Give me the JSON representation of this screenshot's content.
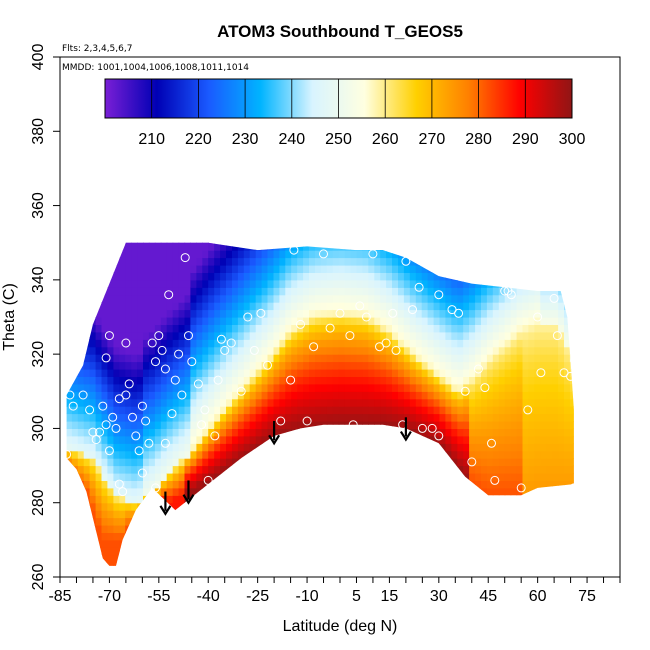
{
  "chart_data": {
    "type": "heatmap",
    "title": "ATOM3 Southbound T_GEOS5",
    "flights_label": "Flts: 2,3,4,5,6,7",
    "mmdd_label": "MMDD: 1001,1004,1006,1008,1011,1014",
    "xlabel": "Latitude (deg N)",
    "ylabel": "Theta (C)",
    "xlim": [
      -85,
      85
    ],
    "ylim": [
      260,
      400
    ],
    "x_ticks": [
      -85,
      -70,
      -55,
      -40,
      -25,
      -10,
      5,
      15,
      30,
      45,
      60,
      75
    ],
    "x_minor_step": 5,
    "y_ticks": [
      260,
      280,
      300,
      320,
      340,
      360,
      380,
      400
    ],
    "colorbar": {
      "range": [
        200,
        300
      ],
      "ticks": [
        210,
        220,
        230,
        240,
        250,
        260,
        270,
        280,
        290,
        300
      ],
      "colors": [
        "#7a1fd6",
        "#0000b4",
        "#1a5aff",
        "#00b4ff",
        "#d8f4ff",
        "#ffffe0",
        "#ffd000",
        "#ff8000",
        "#ff0000",
        "#901515"
      ]
    },
    "boundary_top": [
      [
        -83,
        309
      ],
      [
        -78,
        317
      ],
      [
        -75,
        328
      ],
      [
        -70,
        339
      ],
      [
        -65,
        350
      ],
      [
        -40,
        350
      ],
      [
        -25,
        348
      ],
      [
        -10,
        349
      ],
      [
        5,
        348
      ],
      [
        13,
        348
      ],
      [
        20,
        346
      ],
      [
        30,
        341
      ],
      [
        40,
        339
      ],
      [
        50,
        338
      ],
      [
        60,
        337
      ],
      [
        67,
        337
      ],
      [
        69,
        330
      ],
      [
        70,
        318
      ],
      [
        71,
        305
      ]
    ],
    "boundary_bottom": [
      [
        71,
        285
      ],
      [
        60,
        284
      ],
      [
        55,
        282
      ],
      [
        45,
        282
      ],
      [
        38,
        287
      ],
      [
        30,
        296
      ],
      [
        20,
        300
      ],
      [
        13,
        301
      ],
      [
        5,
        301
      ],
      [
        -5,
        301
      ],
      [
        -12,
        300
      ],
      [
        -20,
        298
      ],
      [
        -30,
        292
      ],
      [
        -40,
        285
      ],
      [
        -50,
        278
      ],
      [
        -57,
        284
      ],
      [
        -62,
        278
      ],
      [
        -66,
        270
      ],
      [
        -68,
        263
      ],
      [
        -70,
        263
      ],
      [
        -72,
        265
      ],
      [
        -77,
        283
      ],
      [
        -80,
        289
      ],
      [
        -83,
        292
      ]
    ],
    "arrows": [
      [
        -53,
        283
      ],
      [
        -46,
        286
      ],
      [
        -20,
        302
      ],
      [
        20,
        303
      ]
    ],
    "obs_points": [
      [
        -83,
        293
      ],
      [
        -82,
        309
      ],
      [
        -81,
        306
      ],
      [
        -80,
        284
      ],
      [
        -78,
        309
      ],
      [
        -76,
        305
      ],
      [
        -75,
        299
      ],
      [
        -74,
        297
      ],
      [
        -73,
        299
      ],
      [
        -72,
        306
      ],
      [
        -71,
        301
      ],
      [
        -71,
        319
      ],
      [
        -70,
        325
      ],
      [
        -70,
        294
      ],
      [
        -69,
        303
      ],
      [
        -68,
        300
      ],
      [
        -67,
        308
      ],
      [
        -67,
        285
      ],
      [
        -66,
        283
      ],
      [
        -65,
        323
      ],
      [
        -65,
        309
      ],
      [
        -64,
        312
      ],
      [
        -63,
        303
      ],
      [
        -62,
        298
      ],
      [
        -61,
        294
      ],
      [
        -60,
        306
      ],
      [
        -60,
        288
      ],
      [
        -59,
        302
      ],
      [
        -58,
        296
      ],
      [
        -57,
        323
      ],
      [
        -56,
        318
      ],
      [
        -56,
        284
      ],
      [
        -55,
        325
      ],
      [
        -54,
        321
      ],
      [
        -53,
        316
      ],
      [
        -53,
        296
      ],
      [
        -52,
        336
      ],
      [
        -51,
        304
      ],
      [
        -50,
        313
      ],
      [
        -49,
        320
      ],
      [
        -48,
        309
      ],
      [
        -47,
        346
      ],
      [
        -46,
        325
      ],
      [
        -45,
        318
      ],
      [
        -43,
        312
      ],
      [
        -42,
        301
      ],
      [
        -41,
        305
      ],
      [
        -40,
        286
      ],
      [
        -38,
        298
      ],
      [
        -37,
        313
      ],
      [
        -36,
        324
      ],
      [
        -35,
        321
      ],
      [
        -33,
        323
      ],
      [
        -30,
        310
      ],
      [
        -28,
        330
      ],
      [
        -26,
        321
      ],
      [
        -24,
        331
      ],
      [
        -22,
        317
      ],
      [
        -20,
        293
      ],
      [
        -18,
        302
      ],
      [
        -15,
        313
      ],
      [
        -14,
        348
      ],
      [
        -12,
        328
      ],
      [
        -10,
        302
      ],
      [
        -8,
        322
      ],
      [
        -5,
        347
      ],
      [
        -3,
        327
      ],
      [
        0,
        331
      ],
      [
        3,
        325
      ],
      [
        4,
        301
      ],
      [
        6,
        333
      ],
      [
        8,
        330
      ],
      [
        10,
        347
      ],
      [
        12,
        322
      ],
      [
        14,
        323
      ],
      [
        16,
        331
      ],
      [
        17,
        321
      ],
      [
        19,
        301
      ],
      [
        20,
        345
      ],
      [
        22,
        332
      ],
      [
        24,
        338
      ],
      [
        25,
        300
      ],
      [
        28,
        300
      ],
      [
        30,
        298
      ],
      [
        30,
        336
      ],
      [
        32,
        344
      ],
      [
        34,
        332
      ],
      [
        36,
        331
      ],
      [
        38,
        310
      ],
      [
        40,
        291
      ],
      [
        42,
        316
      ],
      [
        44,
        311
      ],
      [
        46,
        296
      ],
      [
        47,
        286
      ],
      [
        48,
        341
      ],
      [
        50,
        337
      ],
      [
        51,
        337
      ],
      [
        52,
        336
      ],
      [
        55,
        284
      ],
      [
        57,
        305
      ],
      [
        60,
        330
      ],
      [
        61,
        315
      ],
      [
        65,
        335
      ],
      [
        66,
        325
      ],
      [
        68,
        315
      ],
      [
        70,
        314
      ],
      [
        71,
        284
      ]
    ]
  }
}
